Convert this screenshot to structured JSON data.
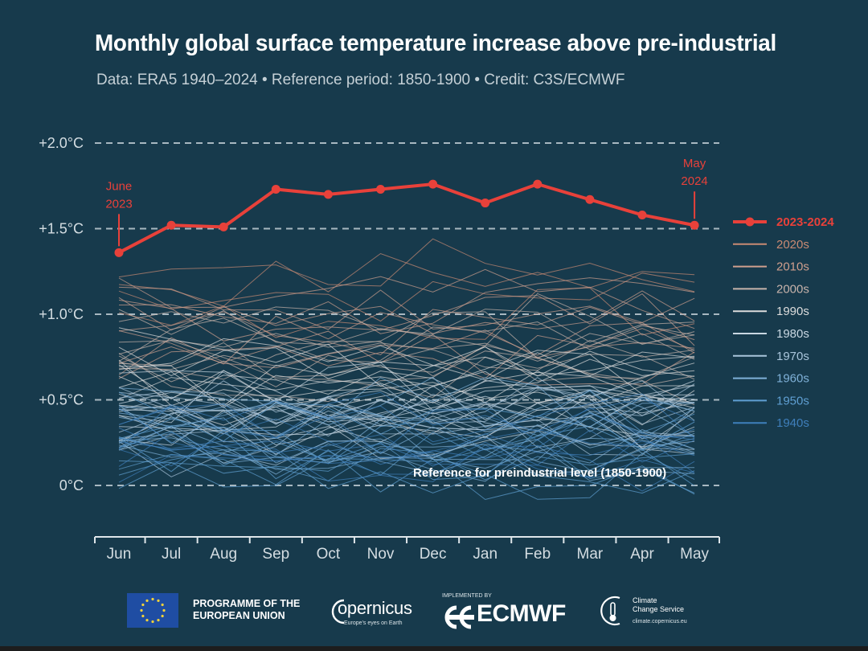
{
  "header": {
    "title": "Monthly global surface temperature increase above pre-industrial",
    "subtitle": "Data: ERA5 1940–2024  •  Reference period: 1850-1900  •  Credit: C3S/ECMWF"
  },
  "chart_data": {
    "type": "line",
    "title": "Monthly global surface temperature increase above pre-industrial",
    "categories": [
      "Jun",
      "Jul",
      "Aug",
      "Sep",
      "Oct",
      "Nov",
      "Dec",
      "Jan",
      "Feb",
      "Mar",
      "Apr",
      "May"
    ],
    "yticks": [
      "+2.0°C",
      "+1.5°C",
      "+1.0°C",
      "+0.5°C",
      "0°C"
    ],
    "ytick_values": [
      2.0,
      1.5,
      1.0,
      0.5,
      0.0
    ],
    "ylim": [
      -0.3,
      2.1
    ],
    "grid": "dashed at tick values",
    "legend_position": "right",
    "reference_label": "Reference for preindustrial level (1850-1900)",
    "highlight": {
      "name": "2023-2024",
      "color": "#e8413a",
      "values": [
        1.36,
        1.52,
        1.51,
        1.73,
        1.7,
        1.73,
        1.76,
        1.65,
        1.76,
        1.67,
        1.58,
        1.52
      ],
      "start_label": [
        "June",
        "2023"
      ],
      "end_label": [
        "May",
        "2024"
      ]
    },
    "series": [
      {
        "name": "2020s",
        "color": "#c98a73",
        "base": 1.12,
        "count": 4
      },
      {
        "name": "2010s",
        "color": "#cf9f8e",
        "base": 0.92,
        "count": 10
      },
      {
        "name": "2000s",
        "color": "#c7b3ab",
        "base": 0.78,
        "count": 10
      },
      {
        "name": "1990s",
        "color": "#dcdcdc",
        "base": 0.62,
        "count": 10
      },
      {
        "name": "1980s",
        "color": "#c9d7e2",
        "base": 0.48,
        "count": 10
      },
      {
        "name": "1970s",
        "color": "#a9c5db",
        "base": 0.34,
        "count": 10
      },
      {
        "name": "1960s",
        "color": "#7fb1d8",
        "base": 0.3,
        "count": 10
      },
      {
        "name": "1950s",
        "color": "#5f9fd2",
        "base": 0.24,
        "count": 10
      },
      {
        "name": "1940s",
        "color": "#3f7fbb",
        "base": 0.27,
        "count": 10
      }
    ]
  },
  "footer": {
    "eu_line1": "PROGRAMME OF THE",
    "eu_line2": "EUROPEAN UNION",
    "copernicus": "opernicus",
    "copernicus_tag": "Europe's eyes on Earth",
    "implemented_by": "IMPLEMENTED BY",
    "ecmwf": "ECMWF",
    "c3s_line1": "Climate",
    "c3s_line2": "Change Service",
    "c3s_url": "climate.copernicus.eu"
  }
}
